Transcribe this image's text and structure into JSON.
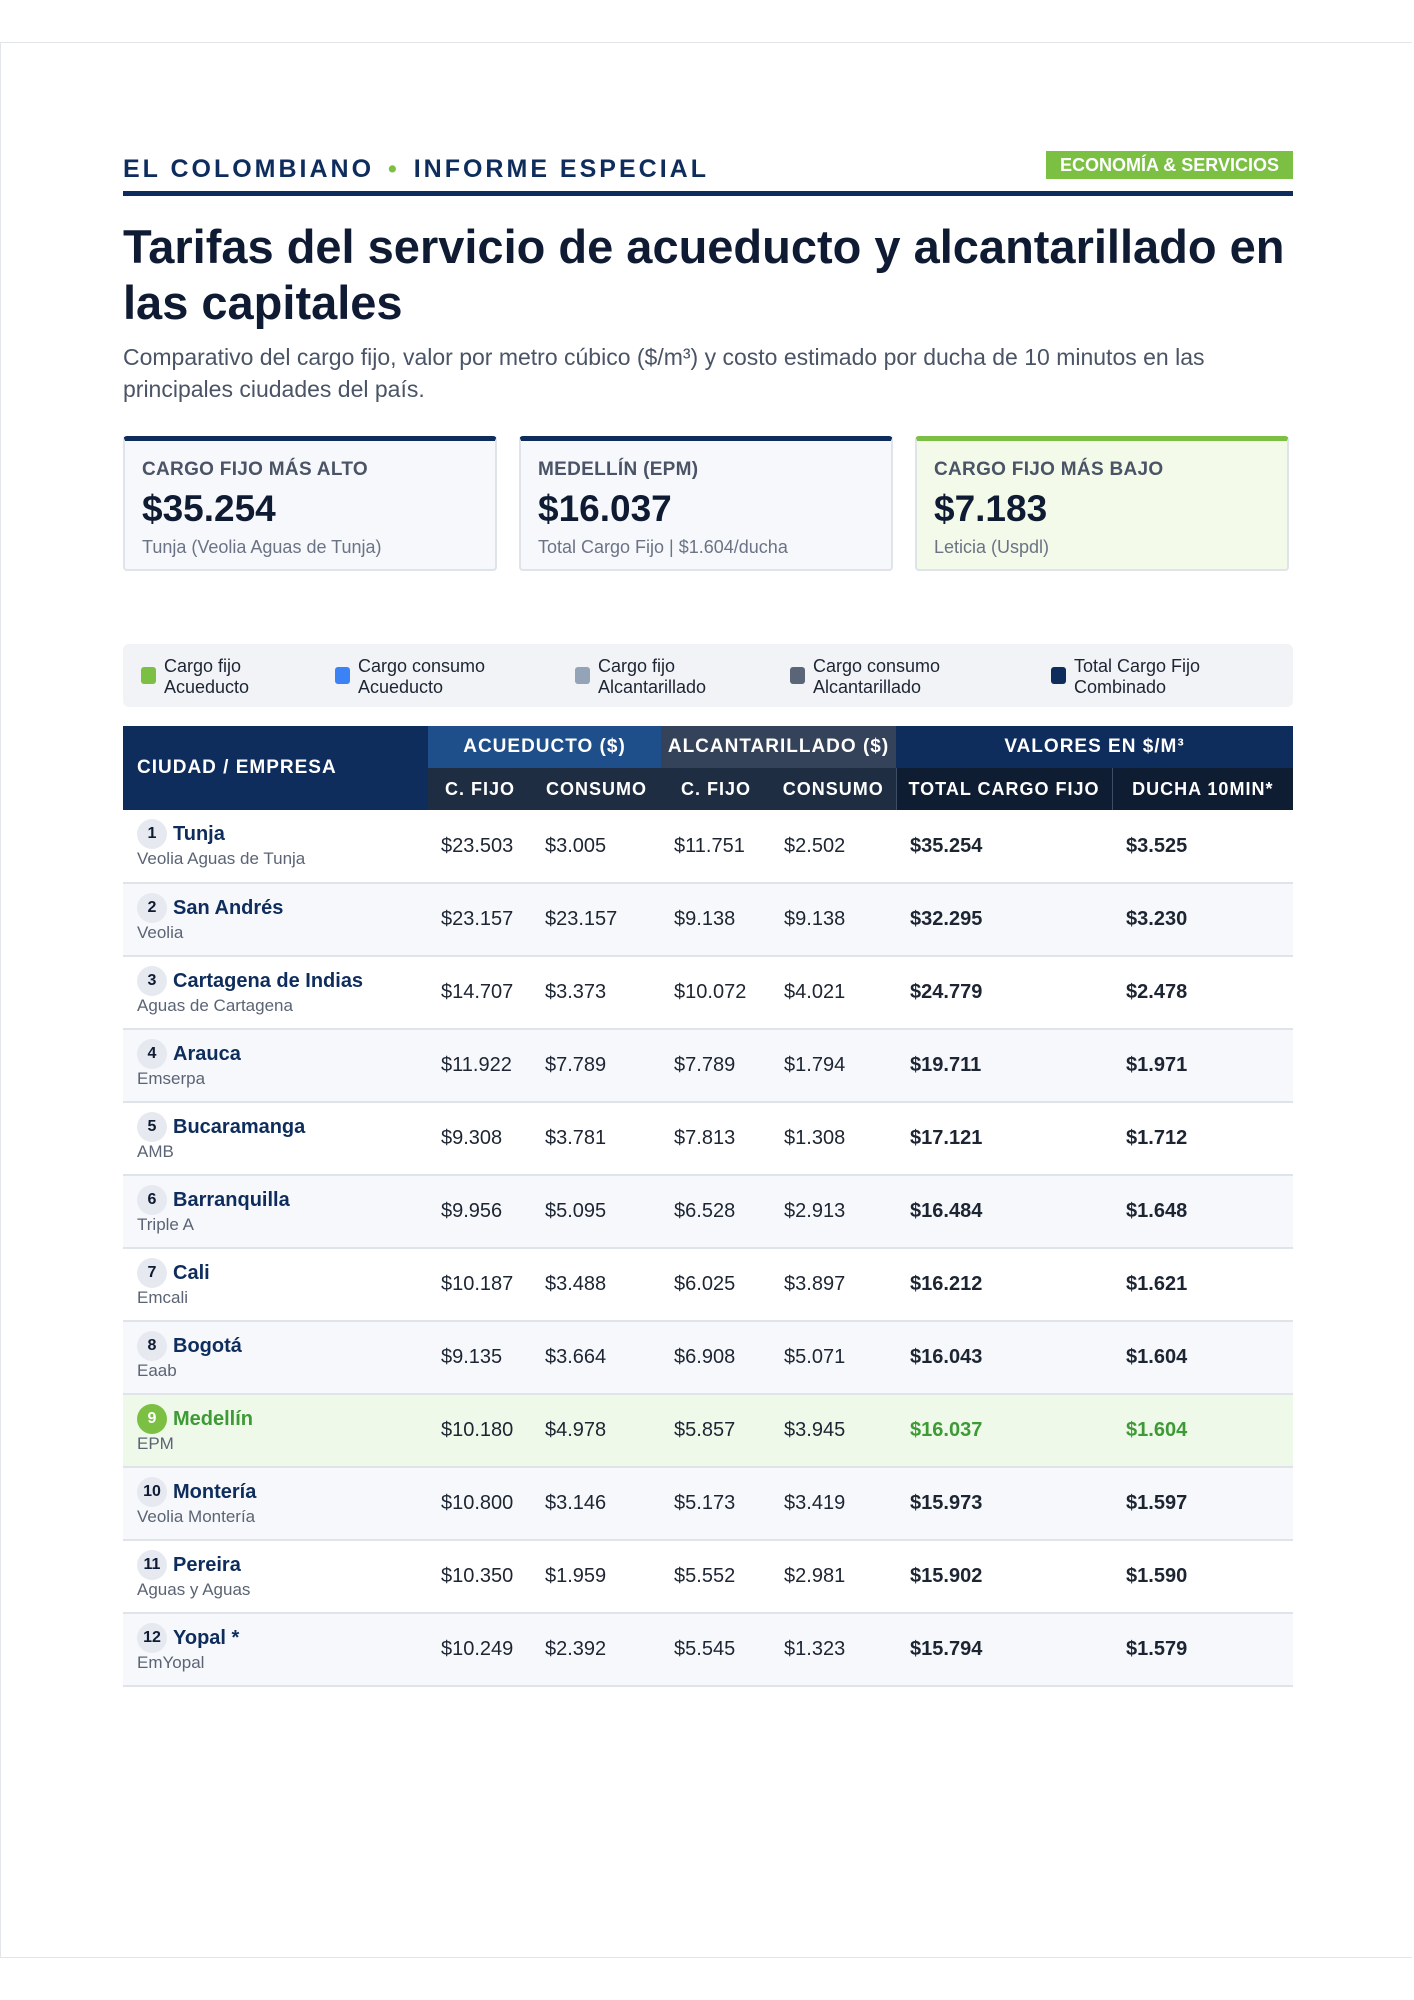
{
  "header": {
    "brand_left": "EL COLOMBIANO",
    "brand_separator": "•",
    "brand_right": "INFORME ESPECIAL",
    "section_badge": "ECONOMÍA & SERVICIOS"
  },
  "title": "Tarifas del servicio de acueducto y alcantarillado en las capitales",
  "subtitle": "Comparativo del cargo fijo, valor por metro cúbico ($/m³) y costo estimado por ducha de 10 minutos en las principales ciudades del país.",
  "cards": [
    {
      "label": "CARGO FIJO MÁS ALTO",
      "value": "$35.254",
      "sub": "Tunja (Veolia Aguas de Tunja)"
    },
    {
      "label": "MEDELLÍN (EPM)",
      "value": "$16.037",
      "sub": "Total Cargo Fijo | $1.604/ducha"
    },
    {
      "label": "CARGO FIJO MÁS BAJO",
      "value": "$7.183",
      "sub": "Leticia (Uspdl)"
    }
  ],
  "legend": [
    {
      "line1": "Cargo fijo",
      "line2": "Acueducto",
      "color": "#7bc043"
    },
    {
      "line1": "Cargo consumo",
      "line2": "Acueducto",
      "color": "#3b82f6"
    },
    {
      "line1": "Cargo fijo",
      "line2": "Alcantarillado",
      "color": "#94a3b8"
    },
    {
      "line1": "Cargo consumo",
      "line2": "Alcantarillado",
      "color": "#5b6578"
    },
    {
      "line1": "Total Cargo Fijo",
      "line2": "Combinado",
      "color": "#0e2d5c"
    }
  ],
  "table": {
    "city_header": "CIUDAD / EMPRESA",
    "group_headers": {
      "acueducto": "ACUEDUCTO ($)",
      "alcantarillado": "ALCANTARILLADO ($)",
      "valores": "VALORES EN $/M³"
    },
    "sub_headers": {
      "acu_fijo": "C. FIJO",
      "acu_consumo": "CONSUMO",
      "alc_fijo": "C. FIJO",
      "alc_consumo": "CONSUMO",
      "total": "TOTAL CARGO FIJO",
      "ducha": "DUCHA 10MIN*"
    },
    "rows": [
      {
        "rank": "1",
        "city": "Tunja",
        "company": "Veolia Aguas de Tunja",
        "acu_fijo": "$23.503",
        "acu_consumo": "$3.005",
        "alc_fijo": "$11.751",
        "alc_consumo": "$2.502",
        "total": "$35.254",
        "ducha": "$3.525"
      },
      {
        "rank": "2",
        "city": "San Andrés",
        "company": "Veolia",
        "acu_fijo": "$23.157",
        "acu_consumo": "$23.157",
        "alc_fijo": "$9.138",
        "alc_consumo": "$9.138",
        "total": "$32.295",
        "ducha": "$3.230"
      },
      {
        "rank": "3",
        "city": "Cartagena de Indias",
        "company": "Aguas de Cartagena",
        "acu_fijo": "$14.707",
        "acu_consumo": "$3.373",
        "alc_fijo": "$10.072",
        "alc_consumo": "$4.021",
        "total": "$24.779",
        "ducha": "$2.478"
      },
      {
        "rank": "4",
        "city": "Arauca",
        "company": "Emserpa",
        "acu_fijo": "$11.922",
        "acu_consumo": "$7.789",
        "alc_fijo": "$7.789",
        "alc_consumo": "$1.794",
        "total": "$19.711",
        "ducha": "$1.971"
      },
      {
        "rank": "5",
        "city": "Bucaramanga",
        "company": "AMB",
        "acu_fijo": "$9.308",
        "acu_consumo": "$3.781",
        "alc_fijo": "$7.813",
        "alc_consumo": "$1.308",
        "total": "$17.121",
        "ducha": "$1.712"
      },
      {
        "rank": "6",
        "city": "Barranquilla",
        "company": "Triple A",
        "acu_fijo": "$9.956",
        "acu_consumo": "$5.095",
        "alc_fijo": "$6.528",
        "alc_consumo": "$2.913",
        "total": "$16.484",
        "ducha": "$1.648"
      },
      {
        "rank": "7",
        "city": "Cali",
        "company": "Emcali",
        "acu_fijo": "$10.187",
        "acu_consumo": "$3.488",
        "alc_fijo": "$6.025",
        "alc_consumo": "$3.897",
        "total": "$16.212",
        "ducha": "$1.621"
      },
      {
        "rank": "8",
        "city": "Bogotá",
        "company": "Eaab",
        "acu_fijo": "$9.135",
        "acu_consumo": "$3.664",
        "alc_fijo": "$6.908",
        "alc_consumo": "$5.071",
        "total": "$16.043",
        "ducha": "$1.604"
      },
      {
        "rank": "9",
        "city": "Medellín",
        "company": "EPM",
        "acu_fijo": "$10.180",
        "acu_consumo": "$4.978",
        "alc_fijo": "$5.857",
        "alc_consumo": "$3.945",
        "total": "$16.037",
        "ducha": "$1.604",
        "highlight": true
      },
      {
        "rank": "10",
        "city": "Montería",
        "company": "Veolia Montería",
        "acu_fijo": "$10.800",
        "acu_consumo": "$3.146",
        "alc_fijo": "$5.173",
        "alc_consumo": "$3.419",
        "total": "$15.973",
        "ducha": "$1.597"
      },
      {
        "rank": "11",
        "city": "Pereira",
        "company": "Aguas y Aguas",
        "acu_fijo": "$10.350",
        "acu_consumo": "$1.959",
        "alc_fijo": "$5.552",
        "alc_consumo": "$2.981",
        "total": "$15.902",
        "ducha": "$1.590"
      },
      {
        "rank": "12",
        "city": "Yopal *",
        "company": "EmYopal",
        "acu_fijo": "$10.249",
        "acu_consumo": "$2.392",
        "alc_fijo": "$5.545",
        "alc_consumo": "$1.323",
        "total": "$15.794",
        "ducha": "$1.579"
      }
    ]
  }
}
